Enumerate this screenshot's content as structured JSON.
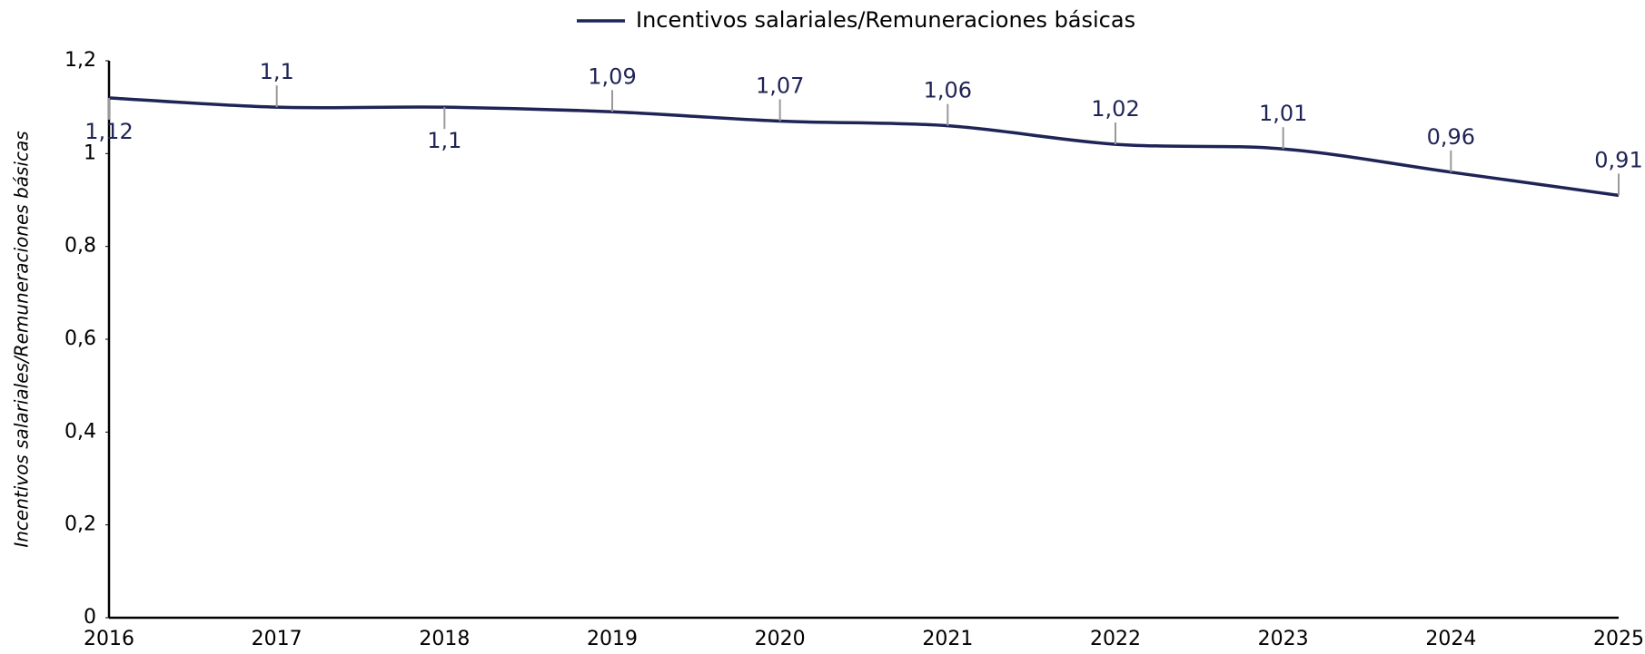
{
  "chart_data": {
    "type": "line",
    "y_label": "Incentivos salariales/Remuneraciones básicas",
    "categories": [
      "2016",
      "2017",
      "2018",
      "2019",
      "2020",
      "2021",
      "2022",
      "2023",
      "2024",
      "2025"
    ],
    "series": [
      {
        "name": "Incentivos salariales/Remuneraciones básicas",
        "color": "#1f2456",
        "values": [
          1.12,
          1.1,
          1.1,
          1.09,
          1.07,
          1.06,
          1.02,
          1.01,
          0.96,
          0.91
        ],
        "value_labels": [
          "1,12",
          "1,1",
          "1,1",
          "1,09",
          "1,07",
          "1,06",
          "1,02",
          "1,01",
          "0,96",
          "0,91"
        ]
      }
    ],
    "ylim": [
      0,
      1.2
    ],
    "yticks": [
      0,
      {
        "value": 0.2,
        "label": "0,2"
      },
      {
        "value": 0.4,
        "label": "0,4"
      },
      {
        "value": 0.6,
        "label": "0,6"
      },
      {
        "value": 0.8,
        "label": "0,8"
      },
      1,
      {
        "value": 1.2,
        "label": "1,2"
      }
    ],
    "legend": "top"
  }
}
